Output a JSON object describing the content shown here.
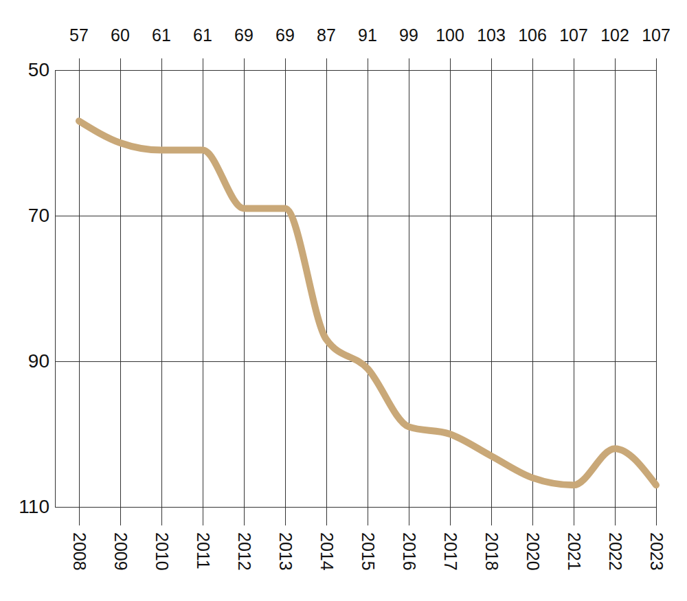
{
  "chart_data": {
    "type": "line",
    "categories": [
      "2008",
      "2009",
      "2010",
      "2011",
      "2012",
      "2013",
      "2014",
      "2015",
      "2016",
      "2017",
      "2018",
      "2020",
      "2021",
      "2022",
      "2023"
    ],
    "values": [
      57,
      60,
      61,
      61,
      69,
      69,
      87,
      91,
      99,
      100,
      103,
      106,
      107,
      102,
      107
    ],
    "color": "#c9a878",
    "ylim": [
      110,
      50
    ],
    "yticks": [
      50,
      70,
      90,
      110
    ],
    "grid": true,
    "data_labels": true
  }
}
